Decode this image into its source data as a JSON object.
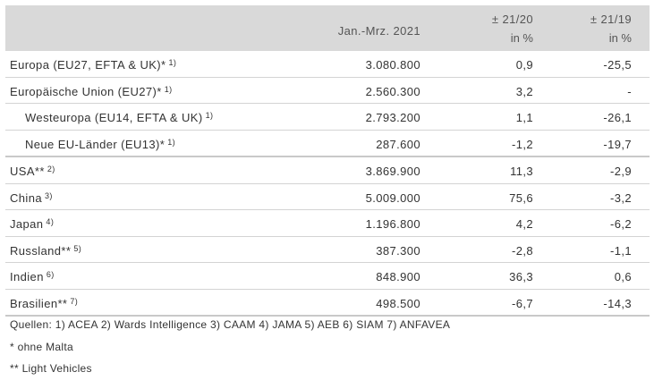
{
  "header": {
    "period": "Jan.-Mrz. 2021",
    "change20_line1": "± 21/20",
    "change20_line2": "in %",
    "change19_line1": "± 21/19",
    "change19_line2": "in %"
  },
  "rows": [
    {
      "label": "Europa (EU27, EFTA & UK)*",
      "sup": "1)",
      "value": "3.080.800",
      "ch20": "0,9",
      "ch19": "-25,5"
    },
    {
      "label": "Europäische Union (EU27)*",
      "sup": "1)",
      "value": "2.560.300",
      "ch20": "3,2",
      "ch19": "-"
    },
    {
      "label": "Westeuropa (EU14, EFTA & UK)",
      "sup": "1)",
      "value": "2.793.200",
      "ch20": "1,1",
      "ch19": "-26,1"
    },
    {
      "label": "Neue EU-Länder (EU13)*",
      "sup": "1)",
      "value": "287.600",
      "ch20": "-1,2",
      "ch19": "-19,7"
    },
    {
      "label": "USA**",
      "sup": "2)",
      "value": "3.869.900",
      "ch20": "11,3",
      "ch19": "-2,9"
    },
    {
      "label": "China",
      "sup": "3)",
      "value": "5.009.000",
      "ch20": "75,6",
      "ch19": "-3,2"
    },
    {
      "label": "Japan",
      "sup": "4)",
      "value": "1.196.800",
      "ch20": "4,2",
      "ch19": "-6,2"
    },
    {
      "label": "Russland**",
      "sup": "5)",
      "value": "387.300",
      "ch20": "-2,8",
      "ch19": "-1,1"
    },
    {
      "label": "Indien",
      "sup": "6)",
      "value": "848.900",
      "ch20": "36,3",
      "ch19": "0,6"
    },
    {
      "label": "Brasilien**",
      "sup": "7)",
      "value": "498.500",
      "ch20": "-6,7",
      "ch19": "-14,3"
    }
  ],
  "notes": {
    "sources": "Quellen: 1) ACEA  2) Wards Intelligence  3) CAAM  4) JAMA 5) AEB 6) SIAM  7) ANFAVEA",
    "note1": "* ohne Malta",
    "note2": "** Light Vehicles"
  }
}
